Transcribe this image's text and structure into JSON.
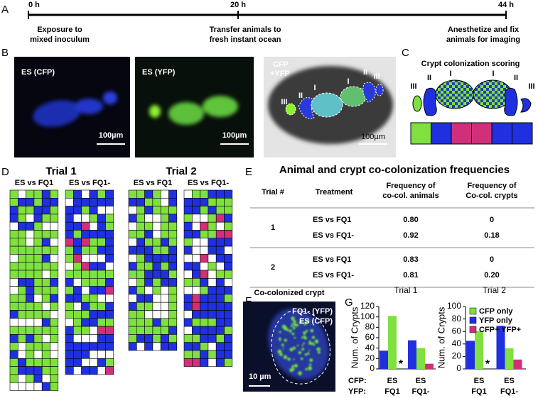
{
  "panel_labels": [
    "A",
    "B",
    "C",
    "D",
    "E",
    "F",
    "G"
  ],
  "timeline": {
    "events": [
      {
        "time": "0 h",
        "lines": [
          "Exposure to",
          "mixed inoculum"
        ]
      },
      {
        "time": "20 h",
        "lines": [
          "Transfer animals to",
          "fresh instant ocean"
        ]
      },
      {
        "time": "44 h",
        "lines": [
          "Anesthetize and fix",
          "animals for imaging"
        ]
      }
    ]
  },
  "images": {
    "cfp_label": "ES (CFP)",
    "yfp_label": "ES (YFP)",
    "merge_label": [
      "CFP",
      "+YFP"
    ],
    "scale_bars": [
      "100µm",
      "100µm",
      "100µm"
    ],
    "regions": [
      "III",
      "II",
      "I",
      "I",
      "II",
      "III"
    ]
  },
  "scoring": {
    "title": "Crypt colonization scoring",
    "regions": [
      "III",
      "II",
      "I",
      "I",
      "II",
      "III"
    ]
  },
  "grids": {
    "trials": [
      {
        "title": "Trial 1",
        "columns": [
          "ES vs FQ1",
          "ES vs FQ1-"
        ]
      },
      {
        "title": "Trial 2",
        "columns": [
          "ES vs FQ1",
          "ES vs FQ1-"
        ]
      }
    ]
  },
  "table": {
    "title": "Animal and crypt co-colonization frequencies",
    "columns": [
      [
        "Trial #"
      ],
      [
        "Treatment"
      ],
      [
        "Frequency of",
        "co-col. animals"
      ],
      [
        "Frequency of",
        "Co-col. crypts"
      ]
    ],
    "groups": [
      {
        "trial": "1",
        "rows": [
          [
            "ES vs FQ1",
            "0.80",
            "0"
          ],
          [
            "ES vs FQ1-",
            "0.92",
            "0.18"
          ]
        ]
      },
      {
        "trial": "2",
        "rows": [
          [
            "ES vs FQ1",
            "0.83",
            "0"
          ],
          [
            "ES vs FQ1-",
            "0.81",
            "0.20"
          ]
        ]
      }
    ]
  },
  "crypt_image": {
    "title": "Co-colonized crypt",
    "labels": [
      "FQ1- (YFP)",
      "ES (CFP)"
    ],
    "scale_bar": "10 µm"
  },
  "chart_data": [
    {
      "type": "bar",
      "title": "Trial 1",
      "y_label": "Num. of Crypts",
      "row_labels": [
        "CFP:",
        "YFP:"
      ],
      "categories": [
        {
          "cfp": "ES",
          "yfp": "FQ1"
        },
        {
          "cfp": "ES",
          "yfp": "FQ1-"
        }
      ],
      "series": [
        {
          "name": "CFP only",
          "color": "#80e040",
          "values": [
            102,
            40
          ]
        },
        {
          "name": "YFP only",
          "color": "#2030e0",
          "values": [
            35,
            55
          ]
        },
        {
          "name": "CFP+ YFP+",
          "color": "#d0307a",
          "values": [
            0,
            10
          ]
        }
      ],
      "annotation": "*",
      "ylim": [
        0,
        120
      ],
      "yticks": [
        0,
        20,
        40,
        60,
        80,
        100,
        120
      ]
    },
    {
      "type": "bar",
      "title": "Trial 2",
      "y_label": "Num. of Crypts",
      "categories": [
        {
          "cfp": "ES",
          "yfp": "FQ1"
        },
        {
          "cfp": "ES",
          "yfp": "FQ1-"
        }
      ],
      "series": [
        {
          "name": "CFP only",
          "color": "#80e040",
          "values": [
            61,
            33
          ]
        },
        {
          "name": "YFP only",
          "color": "#2030e0",
          "values": [
            45,
            69
          ]
        },
        {
          "name": "CFP+ YFP+",
          "color": "#d0307a",
          "values": [
            0,
            15
          ]
        }
      ],
      "annotation": "*",
      "legend": "upper right",
      "ylim": [
        0,
        100
      ],
      "yticks": [
        0,
        20,
        40,
        60,
        80,
        100
      ]
    }
  ]
}
